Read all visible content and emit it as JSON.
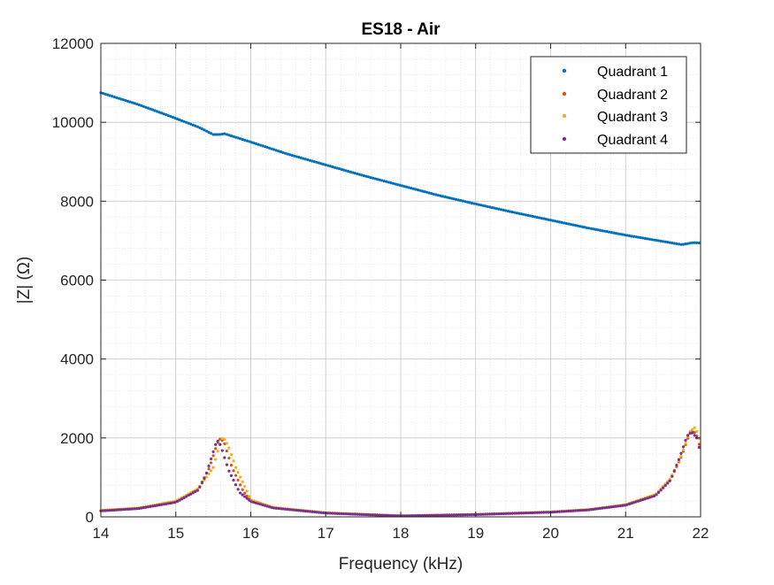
{
  "chart_data": {
    "type": "scatter",
    "title": "ES18 - Air",
    "xlabel": "Frequency (kHz)",
    "ylabel": "|Z| (Ω)",
    "xlim": [
      14,
      22
    ],
    "ylim": [
      0,
      12000
    ],
    "xticks": [
      "14",
      "15",
      "16",
      "17",
      "18",
      "19",
      "20",
      "21",
      "22"
    ],
    "yticks": [
      "0",
      "2000",
      "4000",
      "6000",
      "8000",
      "10000",
      "12000"
    ],
    "grid": true,
    "minor_grid": true,
    "legend_position": "top-right",
    "series": [
      {
        "name": "Quadrant 1",
        "color": "#0072BD",
        "points": [
          [
            14.0,
            10750
          ],
          [
            14.5,
            10450
          ],
          [
            15.0,
            10100
          ],
          [
            15.3,
            9880
          ],
          [
            15.5,
            9690
          ],
          [
            15.58,
            9690
          ],
          [
            15.65,
            9710
          ],
          [
            15.8,
            9620
          ],
          [
            16.0,
            9500
          ],
          [
            16.5,
            9190
          ],
          [
            17.0,
            8920
          ],
          [
            17.5,
            8650
          ],
          [
            18.0,
            8400
          ],
          [
            18.5,
            8150
          ],
          [
            19.0,
            7930
          ],
          [
            19.5,
            7720
          ],
          [
            20.0,
            7520
          ],
          [
            20.5,
            7320
          ],
          [
            21.0,
            7140
          ],
          [
            21.5,
            6980
          ],
          [
            21.75,
            6900
          ],
          [
            21.9,
            6950
          ],
          [
            22.0,
            6940
          ]
        ]
      },
      {
        "name": "Quadrant 2",
        "color": "#D95319",
        "points": [
          [
            14.0,
            155
          ],
          [
            14.5,
            215
          ],
          [
            15.0,
            380
          ],
          [
            15.3,
            700
          ],
          [
            15.45,
            1250
          ],
          [
            15.55,
            1850
          ],
          [
            15.6,
            2000
          ],
          [
            15.65,
            1850
          ],
          [
            15.75,
            1250
          ],
          [
            15.9,
            650
          ],
          [
            16.0,
            400
          ],
          [
            16.3,
            230
          ],
          [
            17.0,
            100
          ],
          [
            18.0,
            25
          ],
          [
            19.0,
            60
          ],
          [
            20.0,
            120
          ],
          [
            20.5,
            180
          ],
          [
            21.0,
            300
          ],
          [
            21.4,
            550
          ],
          [
            21.6,
            950
          ],
          [
            21.75,
            1550
          ],
          [
            21.85,
            2100
          ],
          [
            21.9,
            2200
          ],
          [
            21.95,
            2050
          ],
          [
            22.0,
            1700
          ]
        ]
      },
      {
        "name": "Quadrant 3",
        "color": "#EDB120",
        "points": [
          [
            14.0,
            165
          ],
          [
            14.5,
            225
          ],
          [
            15.0,
            400
          ],
          [
            15.3,
            720
          ],
          [
            15.5,
            1250
          ],
          [
            15.58,
            1800
          ],
          [
            15.63,
            2030
          ],
          [
            15.7,
            1800
          ],
          [
            15.8,
            1250
          ],
          [
            15.95,
            650
          ],
          [
            16.0,
            430
          ],
          [
            16.3,
            240
          ],
          [
            17.0,
            105
          ],
          [
            18.0,
            28
          ],
          [
            19.0,
            62
          ],
          [
            20.0,
            125
          ],
          [
            20.5,
            185
          ],
          [
            21.0,
            310
          ],
          [
            21.4,
            570
          ],
          [
            21.6,
            980
          ],
          [
            21.75,
            1580
          ],
          [
            21.85,
            2150
          ],
          [
            21.92,
            2260
          ],
          [
            21.97,
            2100
          ],
          [
            22.0,
            1750
          ]
        ]
      },
      {
        "name": "Quadrant 4",
        "color": "#7E2F8E",
        "points": [
          [
            14.0,
            150
          ],
          [
            14.5,
            210
          ],
          [
            15.0,
            370
          ],
          [
            15.3,
            680
          ],
          [
            15.4,
            1050
          ],
          [
            15.5,
            1650
          ],
          [
            15.55,
            1950
          ],
          [
            15.6,
            1800
          ],
          [
            15.7,
            1200
          ],
          [
            15.85,
            620
          ],
          [
            16.0,
            390
          ],
          [
            16.3,
            225
          ],
          [
            17.0,
            95
          ],
          [
            18.0,
            22
          ],
          [
            19.0,
            58
          ],
          [
            20.0,
            118
          ],
          [
            20.5,
            175
          ],
          [
            21.0,
            295
          ],
          [
            21.4,
            540
          ],
          [
            21.6,
            930
          ],
          [
            21.72,
            1500
          ],
          [
            21.82,
            2050
          ],
          [
            21.88,
            2150
          ],
          [
            21.95,
            2000
          ],
          [
            22.0,
            1600
          ]
        ]
      }
    ]
  }
}
